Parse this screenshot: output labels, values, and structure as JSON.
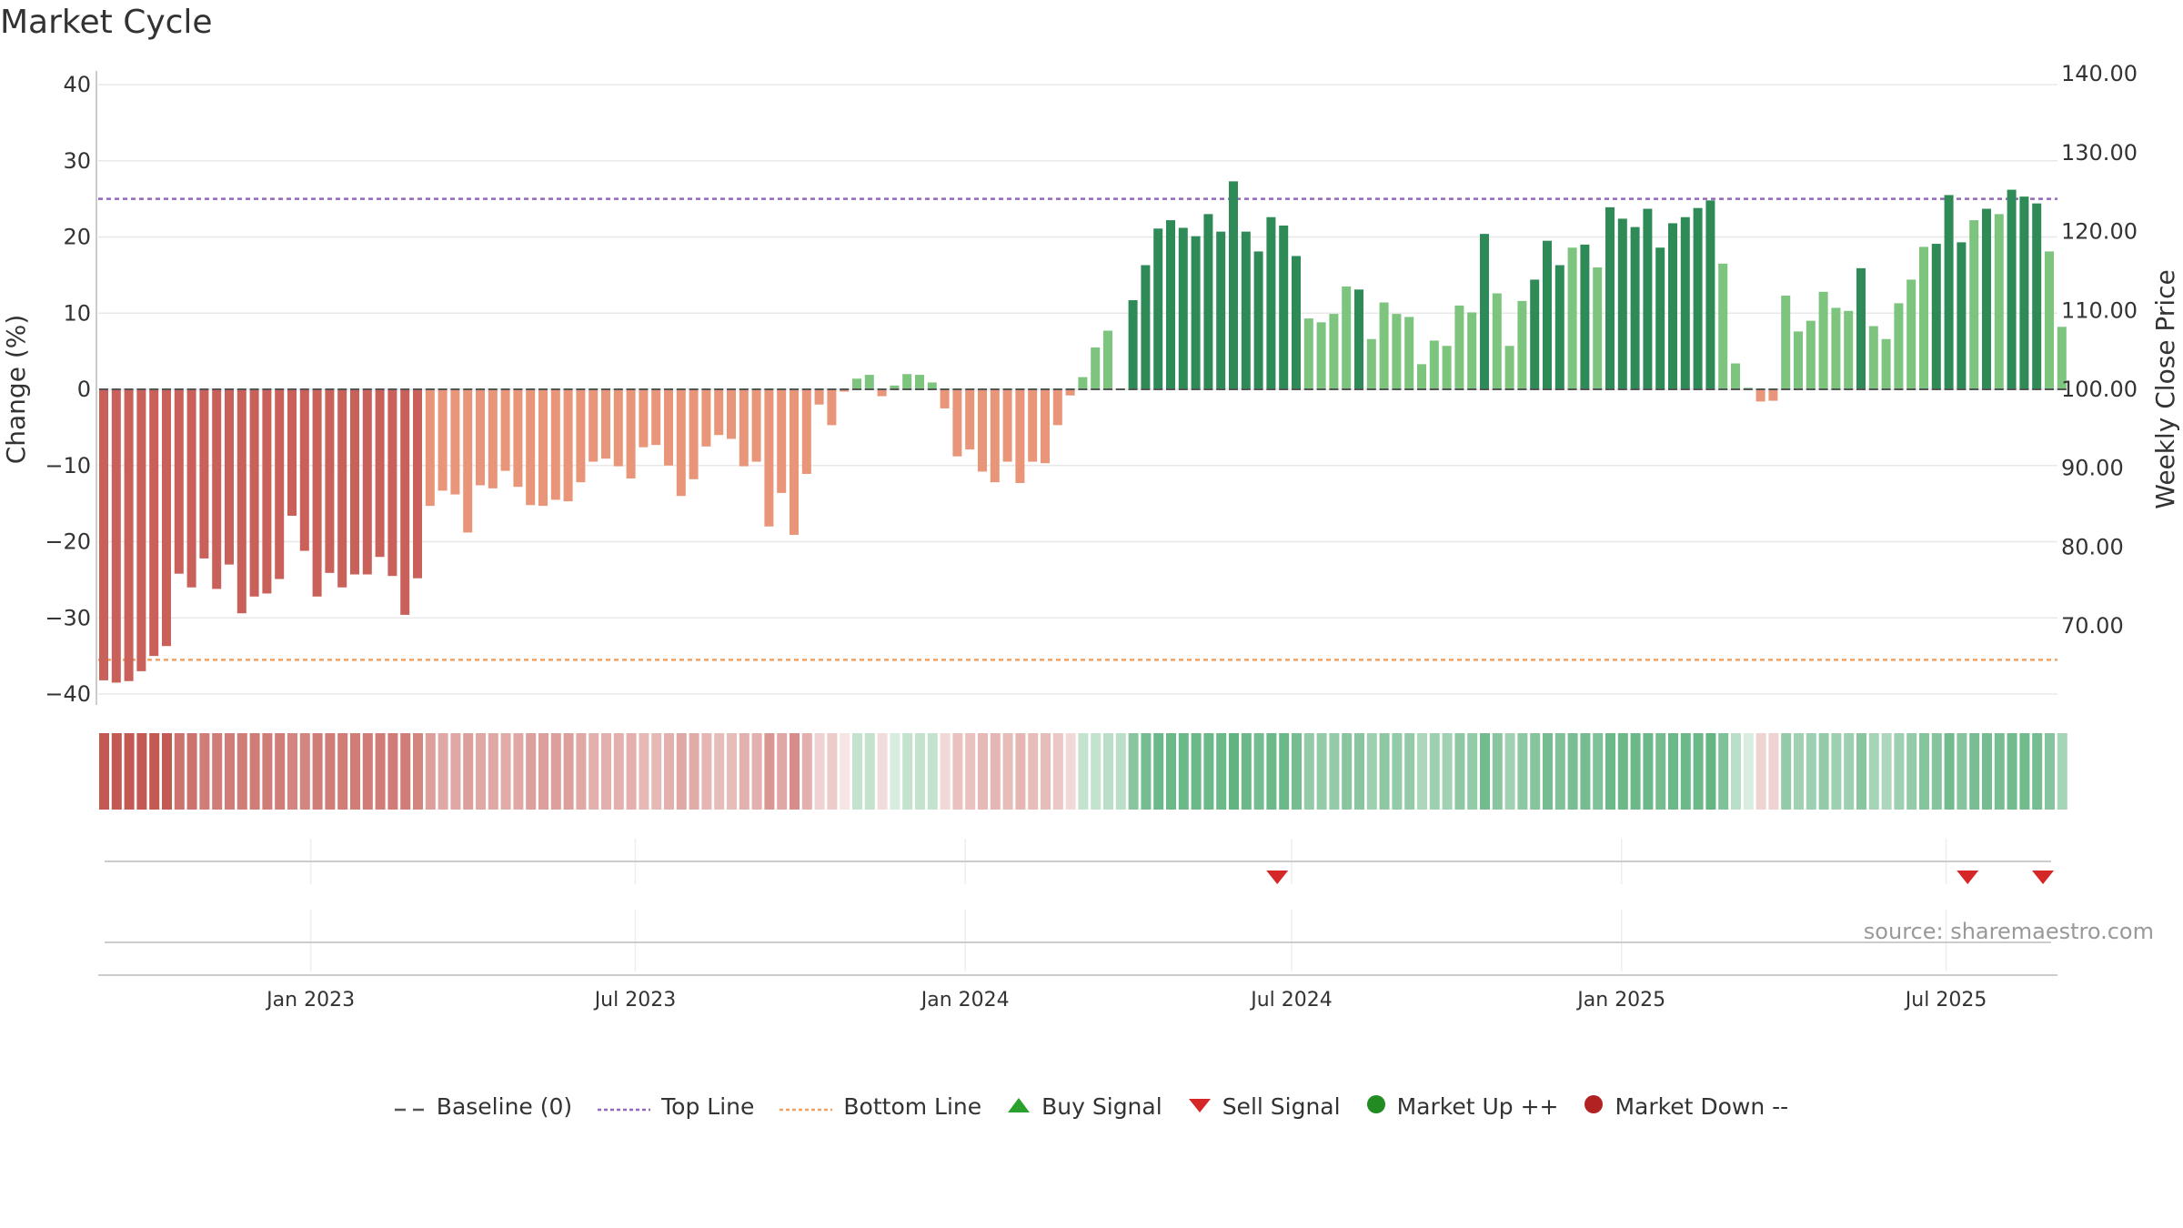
{
  "chart_data": {
    "type": "bar",
    "title": "Market Cycle",
    "y_left_label": "Change (%)",
    "y_right_label": "Weekly Close Price",
    "y_left_range": [
      -40,
      40
    ],
    "y_left_ticks": [
      40,
      30,
      20,
      10,
      0,
      -10,
      -20,
      -30,
      -40
    ],
    "y_left_tick_labels": [
      "40",
      "30",
      "20",
      "10",
      "0",
      "−10",
      "−20",
      "−30",
      "−40"
    ],
    "y_right_ticks": [
      140,
      130,
      120,
      110,
      100,
      90,
      80,
      70
    ],
    "y_right_tick_labels": [
      "140.00",
      "130.00",
      "120.00",
      "110.00",
      "100.00",
      "90.00",
      "80.00",
      "70.00"
    ],
    "y_right_range": [
      63.5,
      141.5
    ],
    "x_start": "2022-09-05",
    "x_tick_dates": [
      "2023-01-01",
      "2023-07-01",
      "2024-01-01",
      "2024-07-01",
      "2025-01-01",
      "2025-07-01"
    ],
    "x_tick_labels": [
      "Jan 2023",
      "Jul 2023",
      "Jan 2024",
      "Jul 2024",
      "Jan 2025",
      "Jul 2025"
    ],
    "top_line": 25,
    "bottom_line": -35.5,
    "baseline": 0,
    "grid": true,
    "legend_position": "bottom",
    "colors": {
      "down_dark": "#c9605a",
      "down_light": "#e8957a",
      "up_dark": "#2e8b57",
      "up_light": "#7dc47f",
      "top_line": "#9467bd",
      "bottom_line": "#f0a060",
      "baseline": "#555555",
      "buy": "#2ca02c",
      "sell": "#d62728",
      "market_up": "#228b22",
      "market_down": "#b22222"
    },
    "values": [
      -38.2,
      -38.5,
      -38.3,
      -37.0,
      -35.0,
      -33.7,
      -24.2,
      -26.0,
      -22.2,
      -26.2,
      -23.0,
      -29.4,
      -27.2,
      -26.8,
      -24.9,
      -16.6,
      -21.2,
      -27.2,
      -24.1,
      -26.0,
      -24.3,
      -24.3,
      -22.0,
      -24.5,
      -29.6,
      -24.8,
      -15.3,
      -13.3,
      -13.8,
      -18.8,
      -12.6,
      -13.0,
      -10.7,
      -12.8,
      -15.2,
      -15.3,
      -14.5,
      -14.7,
      -12.2,
      -9.5,
      -9.1,
      -10.1,
      -11.7,
      -7.6,
      -7.3,
      -10.0,
      -14.0,
      -11.8,
      -7.5,
      -6.0,
      -6.5,
      -10.1,
      -9.5,
      -18.0,
      -13.6,
      -19.1,
      -11.1,
      -2.0,
      -4.7,
      -0.3,
      1.4,
      1.9,
      -0.9,
      0.5,
      2.0,
      1.9,
      0.9,
      -2.5,
      -8.8,
      -7.9,
      -10.8,
      -12.2,
      -9.5,
      -12.3,
      -9.5,
      -9.7,
      -4.7,
      -0.8,
      1.6,
      5.5,
      7.7,
      0.0,
      11.7,
      16.3,
      21.1,
      22.2,
      21.2,
      20.1,
      23.0,
      20.7,
      27.3,
      20.7,
      18.1,
      22.6,
      21.5,
      17.5,
      9.3,
      8.8,
      9.9,
      13.5,
      13.1,
      6.6,
      11.4,
      9.9,
      9.5,
      3.3,
      6.4,
      5.7,
      11.0,
      10.1,
      20.4,
      12.6,
      5.7,
      11.6,
      14.4,
      19.5,
      16.3,
      18.6,
      19.0,
      16.0,
      23.9,
      22.4,
      21.3,
      23.7,
      18.6,
      21.8,
      22.6,
      23.8,
      24.8,
      16.5,
      3.4,
      0.2,
      -1.6,
      -1.5,
      12.3,
      7.6,
      9.0,
      12.8,
      10.7,
      10.3,
      15.9,
      8.3,
      6.6,
      11.3,
      14.4,
      18.7,
      19.1,
      25.5,
      19.3,
      22.2,
      23.7,
      23.0,
      26.2,
      25.3,
      24.4,
      18.1,
      8.2
    ],
    "intensity": [
      0.95,
      0.95,
      0.95,
      0.95,
      0.95,
      0.95,
      0.8,
      0.8,
      0.75,
      0.75,
      0.75,
      0.75,
      0.75,
      0.75,
      0.75,
      0.7,
      0.7,
      0.75,
      0.75,
      0.75,
      0.75,
      0.75,
      0.75,
      0.75,
      0.75,
      0.7,
      0.55,
      0.5,
      0.5,
      0.55,
      0.5,
      0.5,
      0.48,
      0.5,
      0.55,
      0.55,
      0.55,
      0.55,
      0.5,
      0.45,
      0.45,
      0.45,
      0.45,
      0.4,
      0.4,
      0.45,
      0.5,
      0.48,
      0.42,
      0.38,
      0.38,
      0.45,
      0.45,
      0.6,
      0.5,
      0.65,
      0.45,
      0.25,
      0.3,
      0.15,
      0.3,
      0.3,
      0.2,
      0.2,
      0.3,
      0.3,
      0.3,
      0.22,
      0.35,
      0.35,
      0.4,
      0.42,
      0.38,
      0.42,
      0.38,
      0.38,
      0.32,
      0.22,
      0.3,
      0.3,
      0.35,
      0.35,
      0.6,
      0.7,
      0.75,
      0.75,
      0.75,
      0.75,
      0.75,
      0.75,
      0.8,
      0.75,
      0.7,
      0.75,
      0.75,
      0.7,
      0.55,
      0.55,
      0.55,
      0.6,
      0.6,
      0.5,
      0.58,
      0.55,
      0.55,
      0.42,
      0.5,
      0.48,
      0.58,
      0.55,
      0.72,
      0.6,
      0.48,
      0.58,
      0.62,
      0.7,
      0.65,
      0.68,
      0.7,
      0.65,
      0.75,
      0.75,
      0.75,
      0.75,
      0.7,
      0.75,
      0.75,
      0.75,
      0.78,
      0.65,
      0.35,
      0.2,
      0.25,
      0.25,
      0.55,
      0.48,
      0.5,
      0.55,
      0.5,
      0.5,
      0.6,
      0.45,
      0.42,
      0.5,
      0.55,
      0.62,
      0.62,
      0.72,
      0.62,
      0.68,
      0.7,
      0.68,
      0.72,
      0.72,
      0.7,
      0.62,
      0.45
    ],
    "sell_signals": [
      "2024-06-23",
      "2025-07-13",
      "2025-08-24"
    ],
    "buy_signals": [],
    "market_up": [],
    "market_down": []
  },
  "source": "source: sharemaestro.com",
  "legend": [
    {
      "label": "Baseline (0)",
      "icon": "dash-line-icon",
      "color": "#555555"
    },
    {
      "label": "Top Line",
      "icon": "dotted-line-icon",
      "color": "#9467bd"
    },
    {
      "label": "Bottom Line",
      "icon": "dotted-line-icon",
      "color": "#f0a060"
    },
    {
      "label": "Buy Signal",
      "icon": "triangle-up-icon",
      "color": "#2ca02c"
    },
    {
      "label": "Sell Signal",
      "icon": "triangle-down-icon",
      "color": "#d62728"
    },
    {
      "label": "Market Up ++",
      "icon": "circle-icon",
      "color": "#228b22"
    },
    {
      "label": "Market Down --",
      "icon": "circle-icon",
      "color": "#b22222"
    }
  ]
}
